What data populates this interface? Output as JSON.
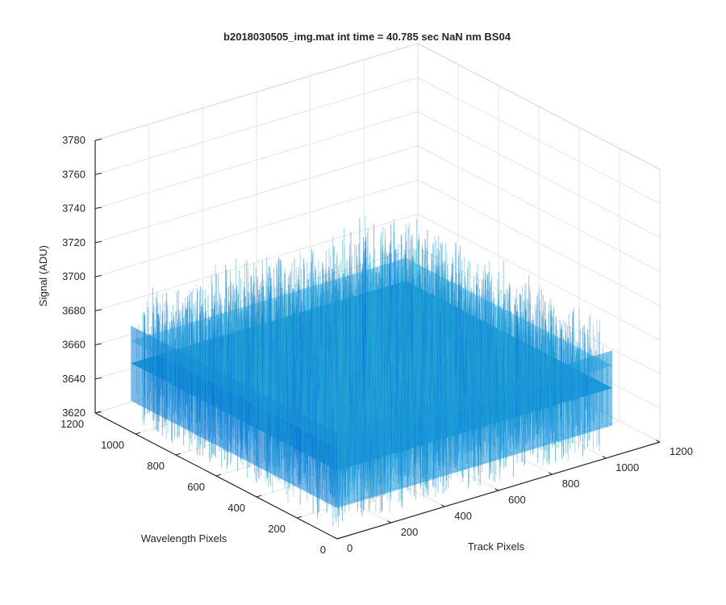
{
  "chart_data": {
    "type": "surface",
    "title": "b2018030505_img.mat int time = 40.785 sec  NaN nm BS04",
    "xlabel": "Track Pixels",
    "ylabel": "Wavelength Pixels",
    "zlabel": "Signal (ADU)",
    "xlim": [
      0,
      1200
    ],
    "ylim": [
      0,
      1200
    ],
    "zlim": [
      3620,
      3780
    ],
    "x_ticks": [
      "0",
      "200",
      "400",
      "600",
      "800",
      "1000",
      "1200"
    ],
    "y_ticks": [
      "0",
      "200",
      "400",
      "600",
      "800",
      "1000",
      "1200"
    ],
    "z_ticks": [
      "3620",
      "3640",
      "3660",
      "3680",
      "3700",
      "3720",
      "3740",
      "3760",
      "3780"
    ],
    "data_extent": {
      "x": [
        1,
        1024
      ],
      "y": [
        1,
        1024
      ]
    },
    "signal_level": {
      "mean": 3660,
      "min": 3625,
      "max": 3745
    },
    "grid": true,
    "colormap": "parula",
    "colors": {
      "surface_low": "#0a5fd8",
      "surface_mid": "#1a9fd6",
      "surface_high": "#9ad95a",
      "axis": "#262626",
      "grid": "#e6e6e6"
    }
  }
}
